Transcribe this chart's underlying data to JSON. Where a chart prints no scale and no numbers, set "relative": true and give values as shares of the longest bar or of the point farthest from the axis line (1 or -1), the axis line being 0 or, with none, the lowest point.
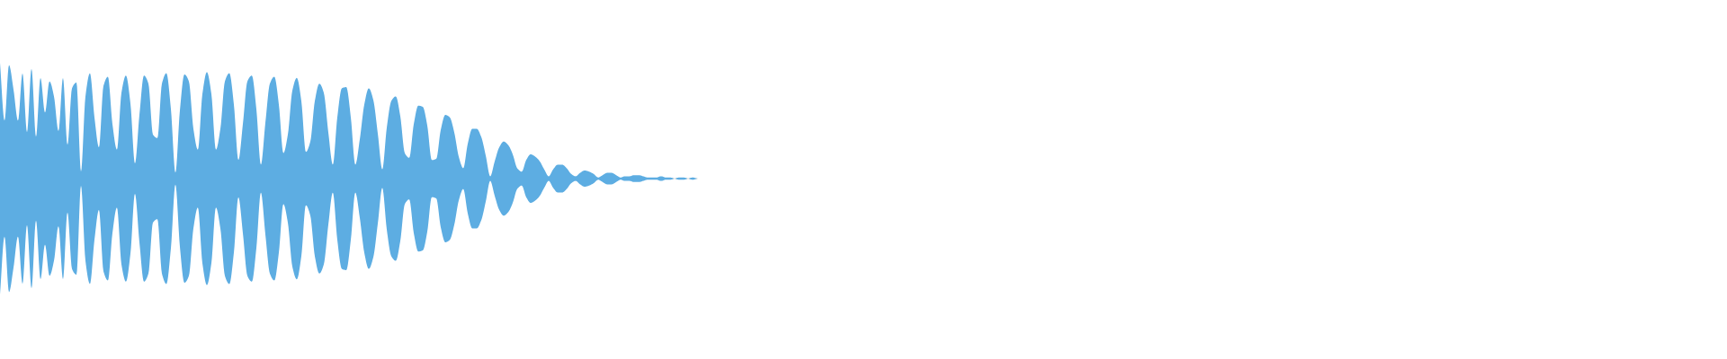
{
  "chart_data": {
    "type": "area",
    "relative": true,
    "categories": [
      null,
      null,
      null,
      null,
      null,
      null,
      null,
      null,
      null,
      null,
      null,
      null,
      null,
      null,
      null,
      null,
      null,
      null,
      null,
      null,
      null,
      null,
      null,
      null,
      null,
      null,
      null,
      null,
      null,
      null,
      null,
      null,
      null,
      null,
      null,
      null,
      null,
      null,
      null,
      null,
      null,
      null,
      null,
      null,
      null,
      null,
      null,
      null,
      null,
      null,
      null,
      null,
      null,
      null,
      null,
      null,
      null,
      null,
      null,
      null,
      null,
      null,
      null,
      null,
      null,
      null,
      null,
      null,
      null,
      null,
      null,
      null,
      null,
      null,
      null,
      null,
      null,
      null,
      null,
      null,
      null,
      null,
      null,
      null,
      null,
      null,
      null,
      null,
      null,
      null,
      null,
      null,
      null,
      null,
      null,
      null,
      null,
      null,
      null,
      null,
      null,
      null,
      null,
      null,
      null,
      null,
      null,
      null,
      null,
      null,
      null,
      null,
      null,
      null,
      null,
      null,
      null,
      null,
      null,
      null,
      null,
      null,
      null,
      null,
      null,
      null,
      null,
      null,
      null,
      null,
      null,
      null,
      null,
      null,
      null,
      null,
      null,
      null,
      null,
      null,
      null,
      null,
      null,
      null,
      null,
      null,
      null,
      null,
      null,
      null,
      null,
      null,
      null,
      null,
      null,
      null
    ],
    "series": [
      {
        "color": "#5dade2",
        "values": [
          1.0,
          0.5,
          0.98,
          0.77,
          0.5,
          0.91,
          0.4,
          0.95,
          0.36,
          0.87,
          0.57,
          0.84,
          0.71,
          0.41,
          0.87,
          0.29,
          0.78,
          0.83,
          0.06,
          0.71,
          0.91,
          0.53,
          0.27,
          0.8,
          0.88,
          0.47,
          0.25,
          0.74,
          0.89,
          0.65,
          0.13,
          0.55,
          0.89,
          0.82,
          0.38,
          0.35,
          0.82,
          0.91,
          0.6,
          0.05,
          0.59,
          0.9,
          0.84,
          0.43,
          0.25,
          0.73,
          0.92,
          0.73,
          0.25,
          0.43,
          0.84,
          0.91,
          0.64,
          0.16,
          0.47,
          0.84,
          0.89,
          0.6,
          0.12,
          0.48,
          0.82,
          0.88,
          0.64,
          0.22,
          0.38,
          0.76,
          0.87,
          0.67,
          0.23,
          0.32,
          0.67,
          0.82,
          0.74,
          0.4,
          0.12,
          0.53,
          0.78,
          0.79,
          0.53,
          0.12,
          0.34,
          0.64,
          0.78,
          0.68,
          0.39,
          0.08,
          0.44,
          0.67,
          0.71,
          0.54,
          0.22,
          0.18,
          0.47,
          0.63,
          0.62,
          0.46,
          0.16,
          0.17,
          0.42,
          0.55,
          0.53,
          0.4,
          0.19,
          0.09,
          0.3,
          0.43,
          0.43,
          0.36,
          0.2,
          0.02,
          0.15,
          0.27,
          0.32,
          0.29,
          0.21,
          0.09,
          0.06,
          0.16,
          0.21,
          0.19,
          0.15,
          0.08,
          0.02,
          0.08,
          0.12,
          0.12,
          0.09,
          0.04,
          0.02,
          0.05,
          0.07,
          0.06,
          0.04,
          0.01,
          0.03,
          0.05,
          0.05,
          0.03,
          0.01,
          0.02,
          0.02,
          0.03,
          0.03,
          0.02,
          0.01,
          0.01,
          0.01,
          0.02,
          0.01,
          0.01,
          0,
          0.01,
          0.01,
          0,
          0.01,
          0
        ]
      },
      {
        "color": "#5dade2",
        "values": [
          -1.0,
          -0.5,
          -0.98,
          -0.77,
          -0.5,
          -0.91,
          -0.4,
          -0.95,
          -0.36,
          -0.87,
          -0.57,
          -0.84,
          -0.71,
          -0.41,
          -0.87,
          -0.29,
          -0.78,
          -0.83,
          -0.06,
          -0.71,
          -0.91,
          -0.53,
          -0.27,
          -0.8,
          -0.88,
          -0.47,
          -0.25,
          -0.74,
          -0.89,
          -0.65,
          -0.13,
          -0.55,
          -0.89,
          -0.82,
          -0.38,
          -0.35,
          -0.82,
          -0.91,
          -0.6,
          -0.05,
          -0.59,
          -0.9,
          -0.84,
          -0.43,
          -0.25,
          -0.73,
          -0.92,
          -0.73,
          -0.25,
          -0.43,
          -0.84,
          -0.91,
          -0.64,
          -0.16,
          -0.47,
          -0.84,
          -0.89,
          -0.6,
          -0.12,
          -0.48,
          -0.82,
          -0.88,
          -0.64,
          -0.22,
          -0.38,
          -0.76,
          -0.87,
          -0.67,
          -0.23,
          -0.32,
          -0.67,
          -0.82,
          -0.74,
          -0.4,
          -0.12,
          -0.53,
          -0.78,
          -0.79,
          -0.53,
          -0.12,
          -0.34,
          -0.64,
          -0.78,
          -0.68,
          -0.39,
          -0.08,
          -0.44,
          -0.67,
          -0.71,
          -0.54,
          -0.22,
          -0.18,
          -0.47,
          -0.63,
          -0.62,
          -0.46,
          -0.16,
          -0.17,
          -0.42,
          -0.55,
          -0.53,
          -0.4,
          -0.19,
          -0.09,
          -0.3,
          -0.43,
          -0.43,
          -0.36,
          -0.2,
          -0.02,
          -0.15,
          -0.27,
          -0.32,
          -0.29,
          -0.21,
          -0.09,
          -0.06,
          -0.16,
          -0.21,
          -0.19,
          -0.15,
          -0.08,
          -0.02,
          -0.08,
          -0.12,
          -0.12,
          -0.09,
          -0.04,
          -0.02,
          -0.05,
          -0.07,
          -0.06,
          -0.04,
          -0.01,
          -0.03,
          -0.05,
          -0.05,
          -0.03,
          -0.01,
          -0.02,
          -0.02,
          -0.03,
          -0.03,
          -0.02,
          -0.01,
          -0.01,
          -0.01,
          -0.02,
          -0.01,
          -0.01,
          0,
          -0.01,
          -0.01,
          0,
          -0.01,
          0
        ]
      }
    ]
  }
}
